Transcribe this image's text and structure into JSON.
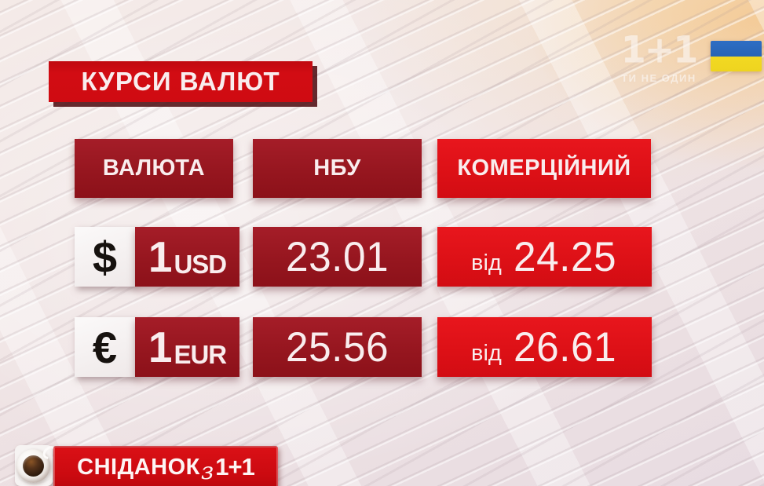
{
  "title": "КУРСИ ВАЛЮТ",
  "table": {
    "headers": {
      "currency": "ВАЛЮТА",
      "nbu": "НБУ",
      "commercial": "КОМЕРЦІЙНИЙ"
    },
    "rows": [
      {
        "currency": "USD",
        "symbol": "$",
        "unit_amount": "1",
        "unit_code": "USD",
        "nbu_rate": "23.01",
        "commercial_prefix": "від",
        "commercial_rate": "24.25"
      },
      {
        "currency": "EUR",
        "symbol": "€",
        "unit_amount": "1",
        "unit_code": "EUR",
        "nbu_rate": "25.56",
        "commercial_prefix": "від",
        "commercial_rate": "26.61"
      }
    ]
  },
  "branding": {
    "channel_logo": "1+1",
    "channel_slogan": "ТИ НЕ ОДИН",
    "flag": "ukraine-flag",
    "show_logo": {
      "main": "СНІДАНОК",
      "connector": "з",
      "channel": "1+1"
    }
  },
  "colors": {
    "bright-red": "#dc1016",
    "dark-red": "#96161f",
    "title-red": "#cf0b12",
    "shadow-maroon": "#4a070c",
    "text-light": "#f9edee",
    "symbol-black": "#17120f",
    "flag-blue": "#2e6ec4",
    "flag-yellow": "#eed41f",
    "background-tint": "#efe3e3"
  }
}
